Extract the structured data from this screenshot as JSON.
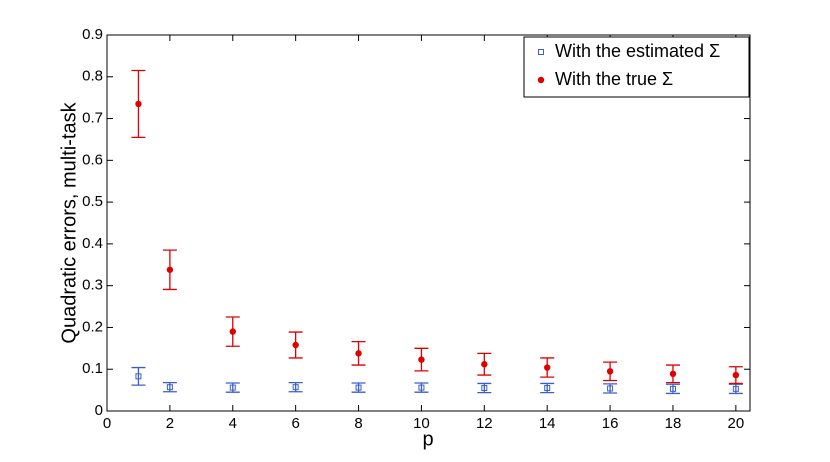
{
  "chart_data": {
    "type": "errorbar-scatter",
    "x_label": "p",
    "y_label": "Quadratic errors, multi-task",
    "x": [
      1,
      2,
      4,
      6,
      8,
      10,
      12,
      14,
      16,
      18,
      20
    ],
    "series": [
      {
        "name": "With the estimated Σ",
        "color": "#3a5fcd",
        "marker": "square",
        "values": [
          0.083,
          0.057,
          0.056,
          0.057,
          0.056,
          0.056,
          0.055,
          0.055,
          0.054,
          0.053,
          0.053
        ],
        "errors": [
          0.021,
          0.011,
          0.011,
          0.011,
          0.011,
          0.011,
          0.011,
          0.011,
          0.011,
          0.011,
          0.011
        ]
      },
      {
        "name": "With the true Σ",
        "color": "#e00000",
        "marker": "dot",
        "values": [
          0.735,
          0.338,
          0.19,
          0.158,
          0.138,
          0.123,
          0.112,
          0.104,
          0.095,
          0.089,
          0.086
        ],
        "errors": [
          0.08,
          0.047,
          0.035,
          0.031,
          0.028,
          0.027,
          0.026,
          0.023,
          0.022,
          0.021,
          0.02
        ]
      }
    ],
    "xlim": [
      0,
      20.45
    ],
    "ylim": [
      0,
      0.9
    ],
    "xticks": [
      0,
      2,
      4,
      6,
      8,
      10,
      12,
      14,
      16,
      18,
      20
    ],
    "yticks": [
      0,
      0.1,
      0.2,
      0.3,
      0.4,
      0.5,
      0.6,
      0.7,
      0.8,
      0.9
    ],
    "legend": "top-right"
  }
}
